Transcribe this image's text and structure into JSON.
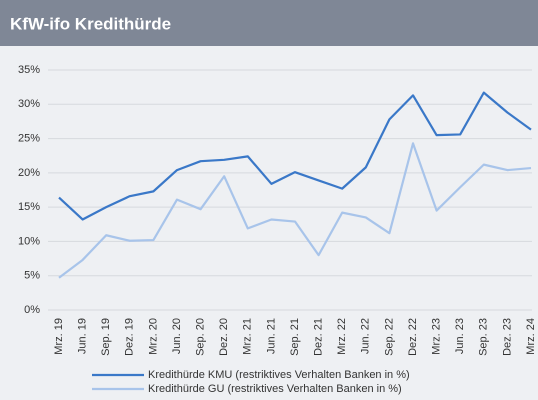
{
  "chart_data": {
    "type": "line",
    "title": "KfW-ifo Kredithürde",
    "categories": [
      "Mrz. 19",
      "Jun. 19",
      "Sep. 19",
      "Dez. 19",
      "Mrz. 20",
      "Jun. 20",
      "Sep. 20",
      "Dez. 20",
      "Mrz. 21",
      "Jun. 21",
      "Sep. 21",
      "Dez. 21",
      "Mrz. 22",
      "Jun. 22",
      "Sep. 22",
      "Dez. 22",
      "Mrz. 23",
      "Jun. 23",
      "Sep. 23",
      "Dez. 23",
      "Mrz. 24"
    ],
    "series": [
      {
        "name": "Kredithürde KMU (restriktives Verhalten Banken in %)",
        "color": "#3a78c8",
        "values": [
          16.4,
          13.2,
          15.0,
          16.6,
          17.3,
          20.4,
          21.7,
          21.9,
          22.4,
          18.4,
          20.1,
          18.9,
          17.7,
          20.8,
          27.8,
          31.3,
          25.5,
          25.6,
          31.7,
          28.8,
          26.3
        ]
      },
      {
        "name": "Kredithürde GU (restriktives Verhalten Banken in %)",
        "color": "#a8c4ea",
        "values": [
          4.7,
          7.3,
          10.9,
          10.1,
          10.2,
          16.1,
          14.7,
          19.5,
          11.9,
          13.2,
          12.9,
          8.0,
          14.2,
          13.5,
          11.2,
          24.3,
          14.5,
          17.9,
          21.2,
          20.4,
          20.7
        ]
      }
    ],
    "ylim": [
      0,
      35
    ],
    "yticks": [
      {
        "value": 0,
        "label": "0%"
      },
      {
        "value": 5,
        "label": "5%"
      },
      {
        "value": 10,
        "label": "10%"
      },
      {
        "value": 15,
        "label": "15%"
      },
      {
        "value": 20,
        "label": "20%"
      },
      {
        "value": 25,
        "label": "25%"
      },
      {
        "value": 30,
        "label": "30%"
      },
      {
        "value": 35,
        "label": "35%"
      }
    ],
    "grid": true
  }
}
